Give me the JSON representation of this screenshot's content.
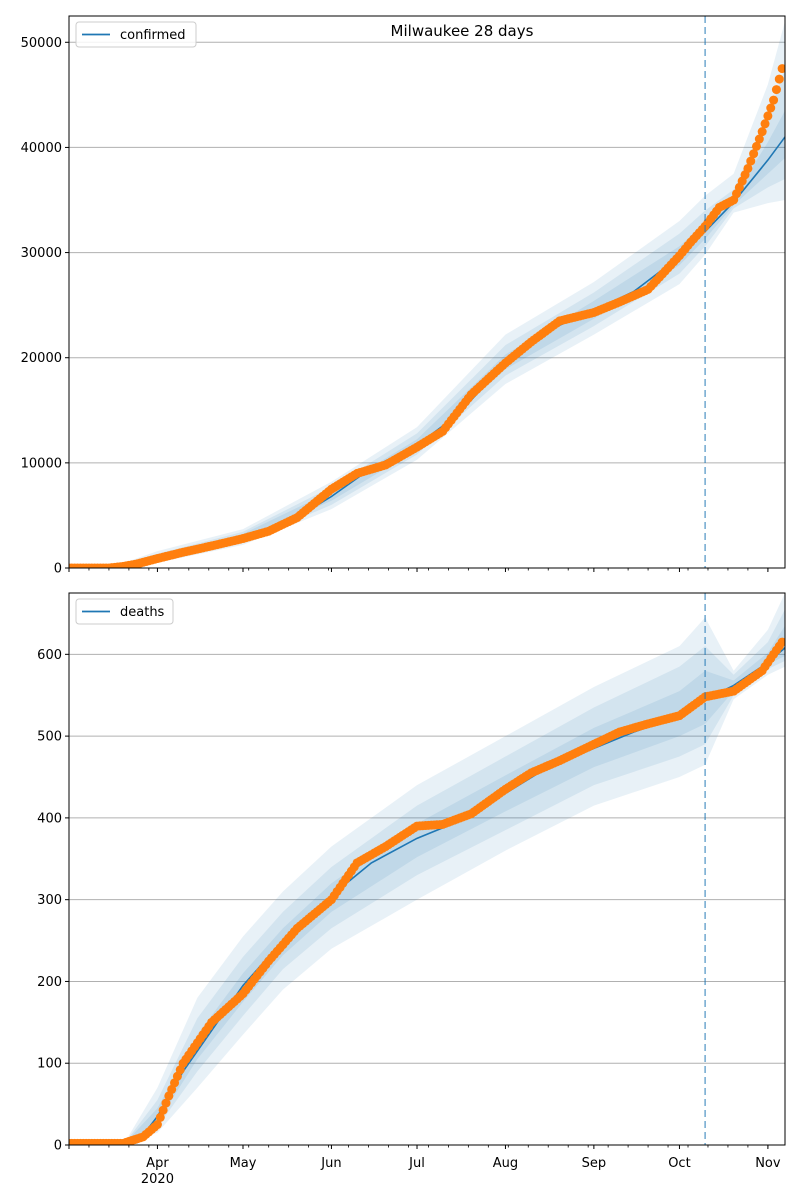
{
  "chart_data": [
    {
      "type": "line",
      "panel": "confirmed",
      "title": "Milwaukee 28 days",
      "legend": [
        "confirmed"
      ],
      "legend_placement": "upper-left",
      "grid": "horizontal",
      "x_range": [
        "2020-03-01",
        "2020-11-07"
      ],
      "ylim": [
        0,
        52500
      ],
      "y_ticks": [
        0,
        10000,
        20000,
        30000,
        40000,
        50000
      ],
      "y_tick_labels": [
        "0",
        "10000",
        "20000",
        "30000",
        "40000",
        "50000"
      ],
      "forecast_start": "2020-10-10",
      "colors": {
        "model": "#1f77b4",
        "observed": "#ff7f0e",
        "band": "#1f77b4"
      },
      "model_series": {
        "name": "confirmed",
        "x": [
          "2020-03-01",
          "2020-03-15",
          "2020-03-25",
          "2020-04-01",
          "2020-04-15",
          "2020-05-01",
          "2020-05-15",
          "2020-06-01",
          "2020-06-15",
          "2020-07-01",
          "2020-07-15",
          "2020-08-01",
          "2020-08-15",
          "2020-09-01",
          "2020-09-15",
          "2020-10-01",
          "2020-10-10",
          "2020-10-20",
          "2020-11-01",
          "2020-11-07"
        ],
        "y": [
          0,
          0,
          400,
          900,
          1800,
          2900,
          4000,
          6800,
          9500,
          11700,
          14500,
          19500,
          22500,
          24500,
          26300,
          29600,
          32000,
          34800,
          38800,
          41000
        ]
      },
      "bands": [
        {
          "x": [
            "2020-03-01",
            "2020-03-15",
            "2020-04-01",
            "2020-05-01",
            "2020-06-01",
            "2020-07-01",
            "2020-08-01",
            "2020-09-01",
            "2020-10-01",
            "2020-10-10",
            "2020-10-20",
            "2020-11-01",
            "2020-11-07"
          ],
          "low": [
            0,
            0,
            500,
            2200,
            5600,
            10300,
            17500,
            22200,
            27000,
            29800,
            33800,
            34700,
            35000
          ],
          "high": [
            0,
            0,
            1600,
            3700,
            8200,
            13400,
            22200,
            27200,
            33000,
            35400,
            37500,
            46000,
            52000
          ]
        },
        {
          "x": [
            "2020-03-01",
            "2020-03-15",
            "2020-04-01",
            "2020-05-01",
            "2020-06-01",
            "2020-07-01",
            "2020-08-01",
            "2020-09-01",
            "2020-10-01",
            "2020-10-10",
            "2020-10-20",
            "2020-11-01",
            "2020-11-07"
          ],
          "low": [
            0,
            0,
            650,
            2450,
            6000,
            10800,
            18300,
            23000,
            28000,
            30600,
            34200,
            36200,
            37000
          ],
          "high": [
            0,
            0,
            1350,
            3450,
            7700,
            12800,
            21200,
            26200,
            31800,
            34000,
            36000,
            43000,
            47500
          ]
        },
        {
          "x": [
            "2020-03-01",
            "2020-03-15",
            "2020-04-01",
            "2020-05-01",
            "2020-06-01",
            "2020-07-01",
            "2020-08-01",
            "2020-09-01",
            "2020-10-01",
            "2020-10-10",
            "2020-10-20",
            "2020-11-01",
            "2020-11-07"
          ],
          "low": [
            0,
            0,
            780,
            2650,
            6400,
            11250,
            18900,
            23700,
            28800,
            31300,
            34500,
            37500,
            39000
          ],
          "high": [
            0,
            0,
            1100,
            3250,
            7300,
            12250,
            20300,
            25400,
            30600,
            32800,
            35300,
            40500,
            43500
          ]
        }
      ],
      "observed": {
        "x": [
          "2020-03-01",
          "2020-03-15",
          "2020-03-20",
          "2020-03-25",
          "2020-04-01",
          "2020-04-10",
          "2020-04-20",
          "2020-05-01",
          "2020-05-10",
          "2020-05-20",
          "2020-06-01",
          "2020-06-10",
          "2020-06-20",
          "2020-07-01",
          "2020-07-10",
          "2020-07-20",
          "2020-08-01",
          "2020-08-10",
          "2020-08-20",
          "2020-09-01",
          "2020-09-10",
          "2020-09-20",
          "2020-10-01",
          "2020-10-05",
          "2020-10-10",
          "2020-10-15",
          "2020-10-20",
          "2020-10-25",
          "2020-10-30",
          "2020-11-03",
          "2020-11-06"
        ],
        "y": [
          0,
          0,
          150,
          400,
          900,
          1500,
          2100,
          2800,
          3500,
          4800,
          7500,
          9000,
          9800,
          11500,
          13000,
          16500,
          19500,
          21500,
          23500,
          24300,
          25300,
          26500,
          29700,
          31000,
          32500,
          34300,
          35000,
          38000,
          41500,
          44500,
          47500
        ]
      }
    },
    {
      "type": "line",
      "panel": "deaths",
      "title": "",
      "legend": [
        "deaths"
      ],
      "legend_placement": "upper-left",
      "grid": "horizontal",
      "x_range": [
        "2020-03-01",
        "2020-11-07"
      ],
      "x_tick_labels": [
        "Apr",
        "May",
        "Jun",
        "Jul",
        "Aug",
        "Sep",
        "Oct",
        "Nov"
      ],
      "x_ticks": [
        "2020-04-01",
        "2020-05-01",
        "2020-06-01",
        "2020-07-01",
        "2020-08-01",
        "2020-09-01",
        "2020-10-01",
        "2020-11-01"
      ],
      "x_year_label": "2020",
      "ylim": [
        0,
        675
      ],
      "y_ticks": [
        0,
        100,
        200,
        300,
        400,
        500,
        600
      ],
      "y_tick_labels": [
        "0",
        "100",
        "200",
        "300",
        "400",
        "500",
        "600"
      ],
      "forecast_start": "2020-10-10",
      "colors": {
        "model": "#1f77b4",
        "observed": "#ff7f0e",
        "band": "#1f77b4"
      },
      "model_series": {
        "name": "deaths",
        "x": [
          "2020-03-01",
          "2020-03-20",
          "2020-03-25",
          "2020-04-01",
          "2020-04-10",
          "2020-04-20",
          "2020-05-01",
          "2020-05-15",
          "2020-06-01",
          "2020-06-15",
          "2020-07-01",
          "2020-07-15",
          "2020-08-01",
          "2020-08-15",
          "2020-09-01",
          "2020-09-15",
          "2020-10-01",
          "2020-10-10",
          "2020-10-20",
          "2020-11-01",
          "2020-11-07"
        ],
        "y": [
          0,
          0,
          3,
          35,
          90,
          140,
          195,
          250,
          305,
          345,
          375,
          395,
          430,
          460,
          485,
          505,
          525,
          545,
          562,
          590,
          608
        ]
      },
      "bands": [
        {
          "x": [
            "2020-03-01",
            "2020-03-20",
            "2020-04-01",
            "2020-04-15",
            "2020-05-01",
            "2020-05-15",
            "2020-06-01",
            "2020-07-01",
            "2020-08-01",
            "2020-09-01",
            "2020-10-01",
            "2020-10-10",
            "2020-10-20",
            "2020-11-01",
            "2020-11-07"
          ],
          "low": [
            0,
            0,
            15,
            70,
            135,
            190,
            240,
            300,
            360,
            415,
            450,
            465,
            545,
            575,
            585
          ],
          "high": [
            0,
            0,
            70,
            180,
            255,
            310,
            365,
            440,
            500,
            560,
            610,
            645,
            580,
            630,
            675
          ]
        },
        {
          "x": [
            "2020-03-01",
            "2020-03-20",
            "2020-04-01",
            "2020-04-15",
            "2020-05-01",
            "2020-05-15",
            "2020-06-01",
            "2020-07-01",
            "2020-08-01",
            "2020-09-01",
            "2020-10-01",
            "2020-10-10",
            "2020-10-20",
            "2020-11-01",
            "2020-11-07"
          ],
          "low": [
            0,
            0,
            22,
            90,
            158,
            215,
            265,
            330,
            385,
            440,
            475,
            490,
            550,
            582,
            592
          ],
          "high": [
            0,
            0,
            55,
            155,
            230,
            285,
            340,
            415,
            475,
            535,
            585,
            610,
            575,
            615,
            655
          ]
        },
        {
          "x": [
            "2020-03-01",
            "2020-03-20",
            "2020-04-01",
            "2020-04-15",
            "2020-05-01",
            "2020-05-15",
            "2020-06-01",
            "2020-07-01",
            "2020-08-01",
            "2020-09-01",
            "2020-10-01",
            "2020-10-10",
            "2020-10-20",
            "2020-11-01",
            "2020-11-07"
          ],
          "low": [
            0,
            0,
            28,
            105,
            175,
            232,
            285,
            352,
            408,
            462,
            500,
            515,
            555,
            588,
            598
          ],
          "high": [
            0,
            0,
            45,
            135,
            210,
            265,
            320,
            393,
            452,
            510,
            555,
            580,
            568,
            602,
            635
          ]
        }
      ],
      "observed": {
        "x": [
          "2020-03-01",
          "2020-03-20",
          "2020-03-27",
          "2020-04-01",
          "2020-04-05",
          "2020-04-10",
          "2020-04-15",
          "2020-04-20",
          "2020-05-01",
          "2020-05-10",
          "2020-05-20",
          "2020-06-01",
          "2020-06-10",
          "2020-06-20",
          "2020-07-01",
          "2020-07-10",
          "2020-07-20",
          "2020-08-01",
          "2020-08-10",
          "2020-08-20",
          "2020-09-01",
          "2020-09-10",
          "2020-09-20",
          "2020-10-01",
          "2020-10-10",
          "2020-10-20",
          "2020-10-30",
          "2020-11-06"
        ],
        "y": [
          2,
          2,
          10,
          25,
          60,
          100,
          125,
          150,
          185,
          225,
          265,
          300,
          345,
          365,
          390,
          392,
          405,
          435,
          455,
          470,
          490,
          505,
          515,
          525,
          548,
          555,
          580,
          615
        ]
      }
    }
  ]
}
